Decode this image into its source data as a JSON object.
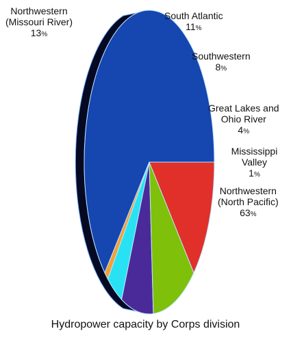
{
  "chart_data": {
    "type": "pie",
    "title": "Hydropower capacity by Corps division",
    "slices": [
      {
        "name": "Northwestern (North Pacific)",
        "name_lines": [
          "Northwestern",
          "(North Pacific)"
        ],
        "value": 63,
        "value_label": "63",
        "unit": "%",
        "color": "#1646b0"
      },
      {
        "name": "Mississippi Valley",
        "name_lines": [
          "Mississippi Valley"
        ],
        "value": 1,
        "value_label": "1",
        "unit": "%",
        "color": "#f5a030"
      },
      {
        "name": "Great Lakes and Ohio River",
        "name_lines": [
          "Great Lakes and",
          "Ohio River"
        ],
        "value": 4,
        "value_label": "4",
        "unit": "%",
        "color": "#28e2f4"
      },
      {
        "name": "Southwestern",
        "name_lines": [
          "Southwestern"
        ],
        "value": 8,
        "value_label": "8",
        "unit": "%",
        "color": "#4a2a98"
      },
      {
        "name": "South Atlantic",
        "name_lines": [
          "South Atlantic"
        ],
        "value": 11,
        "value_label": "11",
        "unit": "%",
        "color": "#7ec00a"
      },
      {
        "name": "Northwestern (Missouri River)",
        "name_lines": [
          "Northwestern",
          "(Missouri River)"
        ],
        "value": 13,
        "value_label": "13",
        "unit": "%",
        "color": "#e1302a"
      }
    ],
    "depth_color": "#050a22",
    "legend": "none"
  }
}
